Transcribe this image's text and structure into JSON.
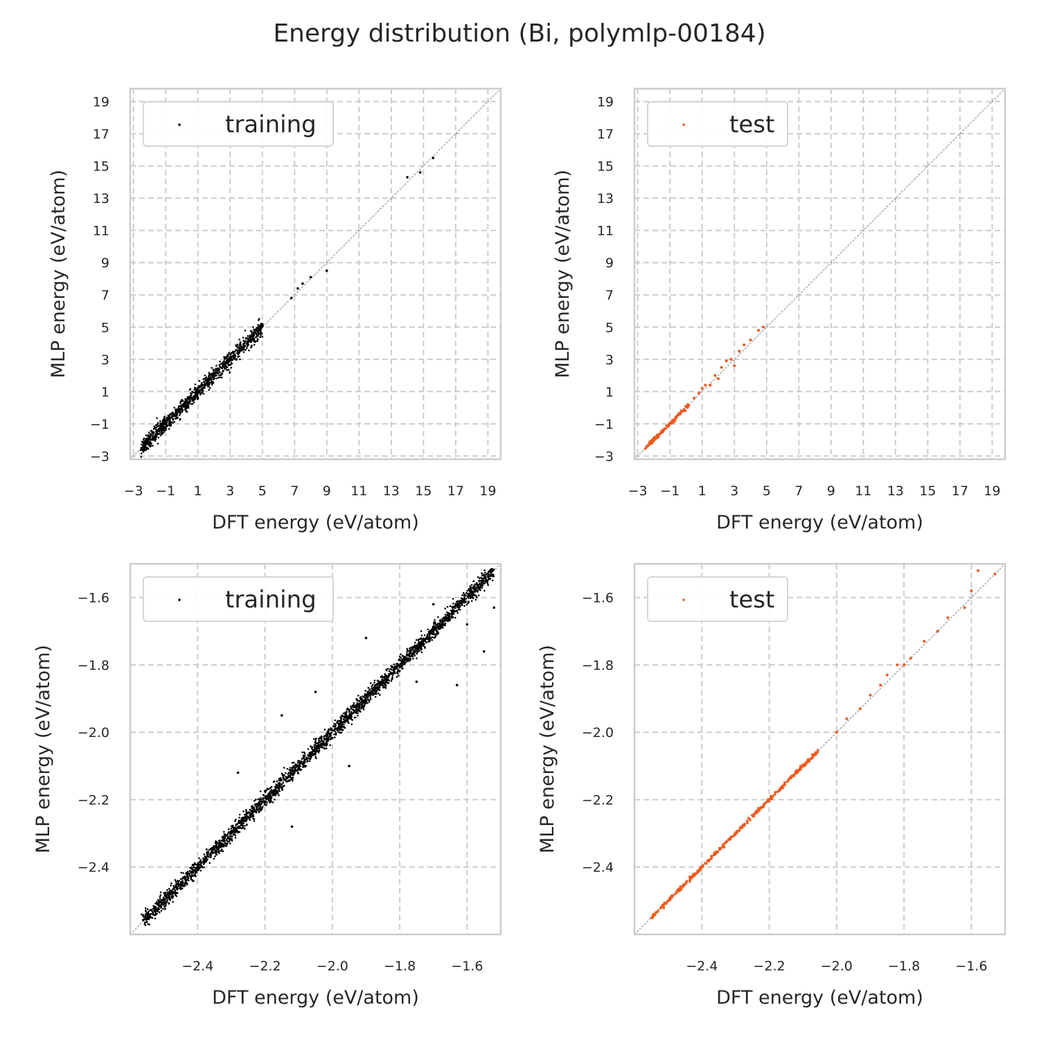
{
  "figure": {
    "title": "Energy distribution (Bi, polymlp-00184)"
  },
  "colors": {
    "training": "#000000",
    "test": "#f05a1e",
    "grid": "#cccccc",
    "frame": "#cccccc",
    "diagonal": "#808080"
  },
  "chart_data": [
    {
      "type": "scatter",
      "panel": "top-left",
      "xlabel": "DFT energy (eV/atom)",
      "ylabel": "MLP energy (eV/atom)",
      "xlim": [
        -3.2,
        19.8
      ],
      "ylim": [
        -3.2,
        19.8
      ],
      "xticks": [
        -3,
        -1,
        1,
        3,
        5,
        7,
        9,
        11,
        13,
        15,
        17,
        19
      ],
      "yticks": [
        -3,
        -1,
        1,
        3,
        5,
        7,
        9,
        11,
        13,
        15,
        17,
        19
      ],
      "grid": true,
      "legend": "upper-left",
      "reference_line": "y = x",
      "series": [
        {
          "name": "training",
          "color": "#000000",
          "segments": [
            [
              -2.55,
              -2.55,
              -2.0,
              -2.0
            ],
            [
              -2.0,
              -2.0,
              -1.0,
              -1.0
            ],
            [
              -1.0,
              -1.0,
              1.0,
              1.0
            ],
            [
              1.0,
              1.0,
              3.0,
              3.0
            ],
            [
              3.0,
              3.0,
              5.0,
              5.0
            ]
          ],
          "points": [
            [
              6.8,
              6.8
            ],
            [
              7.2,
              7.4
            ],
            [
              7.5,
              7.7
            ],
            [
              8.0,
              8.1
            ],
            [
              9.0,
              8.5
            ],
            [
              14.0,
              14.3
            ],
            [
              14.8,
              14.6
            ],
            [
              15.6,
              15.5
            ],
            [
              4.0,
              4.3
            ],
            [
              4.5,
              4.7
            ],
            [
              2.8,
              2.9
            ],
            [
              0.5,
              0.4
            ],
            [
              -1.2,
              -1.4
            ],
            [
              -0.8,
              -0.6
            ]
          ]
        }
      ]
    },
    {
      "type": "scatter",
      "panel": "top-right",
      "xlabel": "DFT energy (eV/atom)",
      "ylabel": "MLP energy (eV/atom)",
      "xlim": [
        -3.2,
        19.8
      ],
      "ylim": [
        -3.2,
        19.8
      ],
      "xticks": [
        -3,
        -1,
        1,
        3,
        5,
        7,
        9,
        11,
        13,
        15,
        17,
        19
      ],
      "yticks": [
        -3,
        -1,
        1,
        3,
        5,
        7,
        9,
        11,
        13,
        15,
        17,
        19
      ],
      "grid": true,
      "legend": "upper-left",
      "reference_line": "y = x",
      "series": [
        {
          "name": "test",
          "color": "#f05a1e",
          "segments": [
            [
              -2.55,
              -2.55,
              -1.0,
              -1.0
            ],
            [
              -1.0,
              -1.0,
              0.2,
              0.2
            ]
          ],
          "points": [
            [
              0.5,
              0.6
            ],
            [
              0.8,
              0.9
            ],
            [
              1.0,
              1.2
            ],
            [
              1.2,
              1.4
            ],
            [
              1.5,
              1.4
            ],
            [
              2.2,
              2.5
            ],
            [
              2.5,
              2.9
            ],
            [
              2.8,
              3.0
            ],
            [
              3.0,
              2.6
            ],
            [
              3.3,
              3.5
            ],
            [
              3.6,
              3.9
            ],
            [
              4.0,
              4.2
            ],
            [
              4.5,
              4.8
            ],
            [
              4.8,
              5.0
            ],
            [
              2.0,
              1.8
            ],
            [
              1.8,
              2.0
            ]
          ]
        }
      ]
    },
    {
      "type": "scatter",
      "panel": "bottom-left",
      "xlabel": "DFT energy (eV/atom)",
      "ylabel": "MLP energy (eV/atom)",
      "xlim": [
        -2.6,
        -1.5
      ],
      "ylim": [
        -2.6,
        -1.5
      ],
      "xticks": [
        -2.4,
        -2.2,
        -2.0,
        -1.8,
        -1.6
      ],
      "yticks": [
        -2.4,
        -2.2,
        -2.0,
        -1.8,
        -1.6
      ],
      "grid": true,
      "legend": "upper-left",
      "reference_line": "y = x",
      "series": [
        {
          "name": "training",
          "color": "#000000",
          "segments": [
            [
              -2.56,
              -2.56,
              -2.3,
              -2.3
            ],
            [
              -2.3,
              -2.3,
              -2.0,
              -2.0
            ],
            [
              -2.0,
              -2.0,
              -1.8,
              -1.8
            ],
            [
              -1.8,
              -1.8,
              -1.52,
              -1.52
            ]
          ],
          "points": [
            [
              -2.15,
              -1.95
            ],
            [
              -1.63,
              -1.86
            ],
            [
              -1.9,
              -1.72
            ],
            [
              -1.75,
              -1.85
            ],
            [
              -1.55,
              -1.76
            ],
            [
              -1.52,
              -1.63
            ],
            [
              -2.28,
              -2.12
            ],
            [
              -2.12,
              -2.28
            ],
            [
              -1.95,
              -2.1
            ],
            [
              -2.05,
              -1.88
            ],
            [
              -1.7,
              -1.62
            ],
            [
              -1.6,
              -1.68
            ]
          ]
        }
      ]
    },
    {
      "type": "scatter",
      "panel": "bottom-right",
      "xlabel": "DFT energy (eV/atom)",
      "ylabel": "MLP energy (eV/atom)",
      "xlim": [
        -2.6,
        -1.5
      ],
      "ylim": [
        -2.6,
        -1.5
      ],
      "xticks": [
        -2.4,
        -2.2,
        -2.0,
        -1.8,
        -1.6
      ],
      "yticks": [
        -2.4,
        -2.2,
        -2.0,
        -1.8,
        -1.6
      ],
      "grid": true,
      "legend": "upper-left",
      "reference_line": "y = x",
      "series": [
        {
          "name": "test",
          "color": "#f05a1e",
          "segments": [
            [
              -2.55,
              -2.55,
              -2.3,
              -2.3
            ],
            [
              -2.3,
              -2.3,
              -2.05,
              -2.05
            ]
          ],
          "points": [
            [
              -2.0,
              -2.0
            ],
            [
              -1.97,
              -1.96
            ],
            [
              -1.93,
              -1.93
            ],
            [
              -1.9,
              -1.89
            ],
            [
              -1.87,
              -1.86
            ],
            [
              -1.85,
              -1.83
            ],
            [
              -1.82,
              -1.8
            ],
            [
              -1.8,
              -1.8
            ],
            [
              -1.78,
              -1.78
            ],
            [
              -1.74,
              -1.73
            ],
            [
              -1.7,
              -1.7
            ],
            [
              -1.67,
              -1.66
            ],
            [
              -1.62,
              -1.63
            ],
            [
              -1.6,
              -1.58
            ],
            [
              -1.58,
              -1.52
            ],
            [
              -1.53,
              -1.53
            ],
            [
              -2.12,
              -2.12
            ],
            [
              -2.07,
              -2.07
            ]
          ]
        }
      ]
    }
  ]
}
